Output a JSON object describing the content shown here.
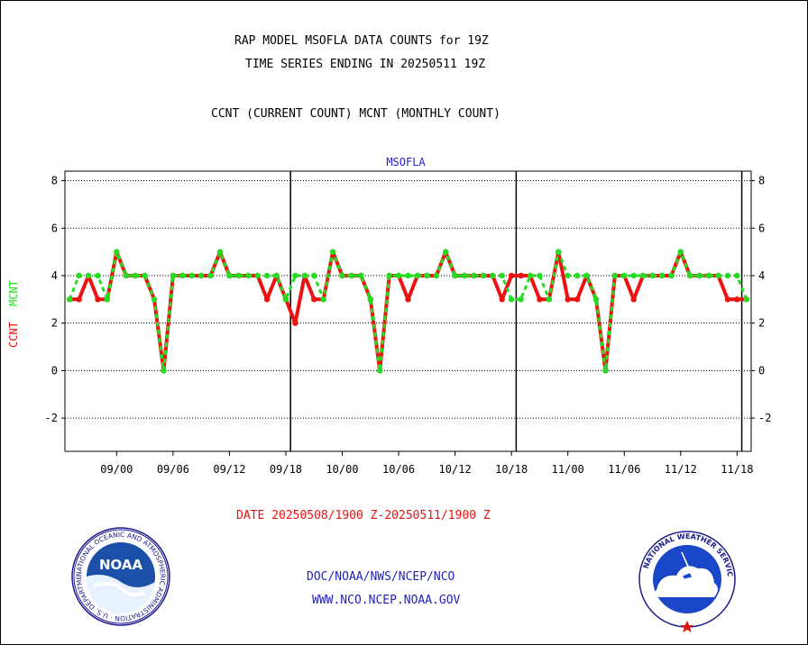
{
  "header": {
    "title_line1": "RAP MODEL MSOFLA DATA COUNTS for 19Z",
    "title_line2": "TIME SERIES ENDING IN 20250511 19Z",
    "subtitle": "CCNT (CURRENT COUNT) MCNT (MONTHLY COUNT)"
  },
  "footer": {
    "date_range": "DATE 20250508/1900 Z-20250511/1900 Z",
    "org_line1": "DOC/NOAA/NWS/NCEP/NCO",
    "org_line2": "WWW.NCO.NCEP.NOAA.GOV"
  },
  "logos": {
    "noaa_text": "NOAA",
    "noaa_ring": "NATIONAL OCEANIC AND ATMOSPHERIC ADMINISTRATION · U.S. DEPARTMENT OF COMMERCE",
    "nws_ring": "NATIONAL WEATHER SERVICE"
  },
  "colors": {
    "ccnt": "#ee1111",
    "mcnt": "#22dd22",
    "station": "#2222cc",
    "footer_date": "#ee1111",
    "footer_org": "#2222bb"
  },
  "chart_data": {
    "type": "line",
    "title": "MSOFLA",
    "ylabel_ccnt": "CCNT",
    "ylabel_mcnt": "MCNT",
    "ylim": [
      -3.4,
      8.4
    ],
    "yticks": [
      -2,
      0,
      2,
      4,
      6,
      8
    ],
    "xlim": [
      -0.5,
      72.5
    ],
    "xtick_positions": [
      5,
      11,
      17,
      23,
      29,
      35,
      41,
      47,
      53,
      59,
      65,
      71
    ],
    "xtick_labels": [
      "09/00",
      "09/06",
      "09/12",
      "09/18",
      "10/00",
      "10/06",
      "10/12",
      "10/18",
      "11/00",
      "11/06",
      "11/12",
      "11/18"
    ],
    "day_boundaries": [
      23.5,
      47.5,
      71.5
    ],
    "grid": true,
    "x": [
      0,
      1,
      2,
      3,
      4,
      5,
      6,
      7,
      8,
      9,
      10,
      11,
      12,
      13,
      14,
      15,
      16,
      17,
      18,
      19,
      20,
      21,
      22,
      23,
      24,
      25,
      26,
      27,
      28,
      29,
      30,
      31,
      32,
      33,
      34,
      35,
      36,
      37,
      38,
      39,
      40,
      41,
      42,
      43,
      44,
      45,
      46,
      47,
      48,
      49,
      50,
      51,
      52,
      53,
      54,
      55,
      56,
      57,
      58,
      59,
      60,
      61,
      62,
      63,
      64,
      65,
      66,
      67,
      68,
      69,
      70,
      71,
      72
    ],
    "series": [
      {
        "name": "CCNT",
        "values": [
          3,
          3,
          4,
          3,
          3,
          5,
          4,
          4,
          4,
          3,
          0,
          4,
          4,
          4,
          4,
          4,
          5,
          4,
          4,
          4,
          4,
          3,
          4,
          3,
          2,
          4,
          3,
          3,
          5,
          4,
          4,
          4,
          3,
          0,
          4,
          4,
          3,
          4,
          4,
          4,
          5,
          4,
          4,
          4,
          4,
          4,
          3,
          4,
          4,
          4,
          3,
          3,
          5,
          3,
          3,
          4,
          3,
          0,
          4,
          4,
          3,
          4,
          4,
          4,
          4,
          5,
          4,
          4,
          4,
          4,
          3,
          3,
          3
        ]
      },
      {
        "name": "MCNT",
        "values": [
          3,
          4,
          4,
          4,
          3,
          5,
          4,
          4,
          4,
          3,
          0,
          4,
          4,
          4,
          4,
          4,
          5,
          4,
          4,
          4,
          4,
          4,
          4,
          3,
          4,
          4,
          4,
          3,
          5,
          4,
          4,
          4,
          3,
          0,
          4,
          4,
          4,
          4,
          4,
          4,
          5,
          4,
          4,
          4,
          4,
          4,
          4,
          3,
          3,
          4,
          4,
          3,
          5,
          4,
          4,
          4,
          3,
          0,
          4,
          4,
          4,
          4,
          4,
          4,
          4,
          5,
          4,
          4,
          4,
          4,
          4,
          4,
          3
        ]
      }
    ]
  }
}
